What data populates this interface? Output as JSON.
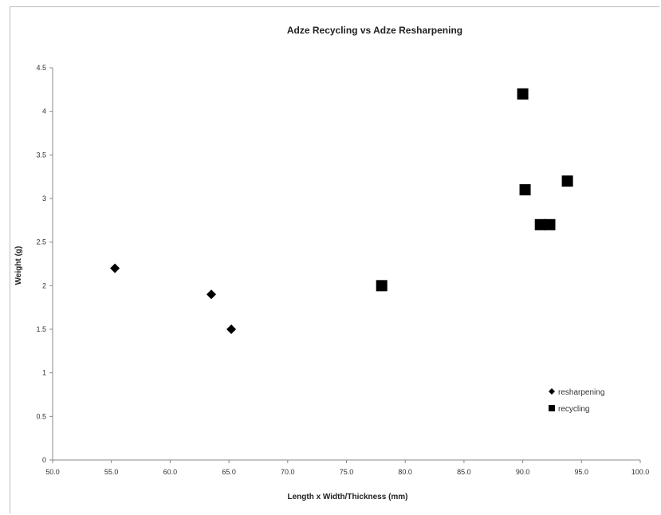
{
  "chart_data": {
    "type": "scatter",
    "title": "Adze Recycling vs Adze Resharpening",
    "xlabel": "Length x Width/Thickness (mm)",
    "ylabel": "Weight (g)",
    "xlim": [
      50,
      100
    ],
    "ylim": [
      0,
      4.5
    ],
    "x_ticks": [
      "50.0",
      "55.0",
      "60.0",
      "65.0",
      "70.0",
      "75.0",
      "80.0",
      "85.0",
      "90.0",
      "95.0",
      "100.0"
    ],
    "y_ticks": [
      "0",
      "0.5",
      "1",
      "1.5",
      "2",
      "2.5",
      "3",
      "3.5",
      "4",
      "4.5"
    ],
    "grid": false,
    "legend_position": "lower-right",
    "series": [
      {
        "name": "resharpening",
        "marker": "diamond",
        "color": "#000000",
        "points": [
          [
            55.3,
            2.2
          ],
          [
            63.5,
            1.9
          ],
          [
            65.2,
            1.5
          ]
        ]
      },
      {
        "name": "recycling",
        "marker": "square",
        "color": "#000000",
        "points": [
          [
            78.0,
            2.0
          ],
          [
            90.0,
            4.2
          ],
          [
            90.2,
            3.1
          ],
          [
            93.8,
            3.2
          ],
          [
            91.5,
            2.7
          ],
          [
            92.3,
            2.7
          ]
        ]
      }
    ]
  }
}
